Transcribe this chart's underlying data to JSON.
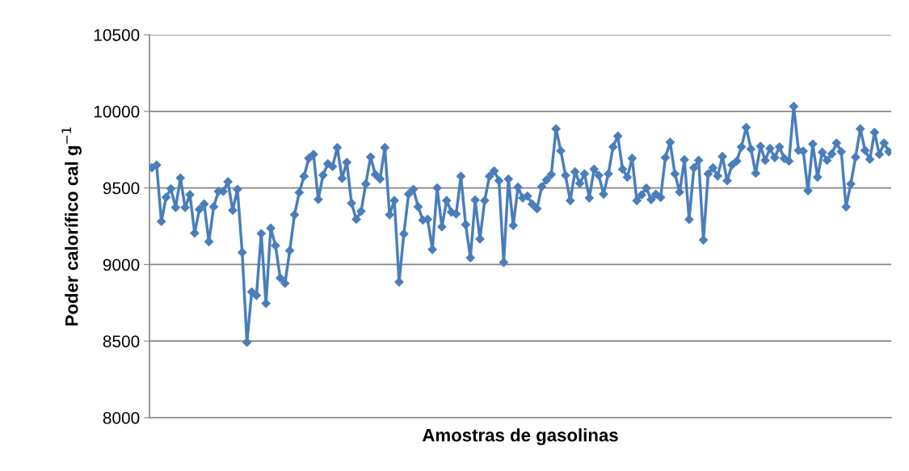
{
  "chart_data": {
    "type": "line",
    "xlabel": "Amostras de gasolinas",
    "ylabel": "Poder calorífico cal g$^{−1}$",
    "categories": [
      null,
      null,
      null,
      null,
      null,
      null,
      null,
      null,
      null,
      null,
      null,
      null,
      null,
      null,
      null,
      null,
      null,
      null,
      null,
      null,
      null,
      null,
      null,
      null,
      null,
      null,
      null,
      null,
      null,
      null,
      null,
      null,
      null,
      null,
      null,
      null,
      null,
      null,
      null,
      null,
      null,
      null,
      null,
      null,
      null,
      null,
      null,
      null,
      null,
      null,
      null,
      null,
      null,
      null,
      null,
      null,
      null,
      null,
      null,
      null,
      null,
      null,
      null,
      null,
      null,
      null,
      null,
      null,
      null,
      null,
      null,
      null,
      null,
      null,
      null,
      null,
      null,
      null,
      null,
      null,
      null,
      null,
      null,
      null,
      null,
      null,
      null,
      null,
      null,
      null,
      null,
      null,
      null,
      null,
      null,
      null,
      null,
      null,
      null,
      null,
      null,
      null,
      null,
      null,
      null,
      null,
      null,
      null,
      null,
      null,
      null,
      null,
      null,
      null,
      null,
      null,
      null,
      null,
      null,
      null,
      null,
      null,
      null,
      null,
      null,
      null,
      null,
      null,
      null,
      null,
      null,
      null,
      null,
      null,
      null,
      null,
      null,
      null,
      null,
      null,
      null,
      null,
      null,
      null,
      null,
      null,
      null,
      null,
      null,
      null,
      null,
      null,
      null,
      null,
      null,
      null
    ],
    "series": [
      {
        "color": "#4a7ebb",
        "values": [
          9632,
          9649,
          9281,
          9439,
          9495,
          9372,
          9565,
          9372,
          9456,
          9205,
          9360,
          9395,
          9149,
          9377,
          9477,
          9477,
          9540,
          9354,
          9491,
          9079,
          8492,
          8821,
          8798,
          9202,
          8746,
          9237,
          9123,
          8912,
          8877,
          9091,
          9325,
          9470,
          9576,
          9693,
          9719,
          9425,
          9583,
          9658,
          9640,
          9763,
          9562,
          9667,
          9400,
          9295,
          9347,
          9526,
          9702,
          9588,
          9558,
          9763,
          9325,
          9418,
          8886,
          9200,
          9460,
          9491,
          9377,
          9290,
          9295,
          9098,
          9500,
          9246,
          9418,
          9342,
          9330,
          9576,
          9260,
          9044,
          9421,
          9167,
          9418,
          9576,
          9611,
          9547,
          9014,
          9558,
          9255,
          9505,
          9434,
          9447,
          9394,
          9364,
          9508,
          9552,
          9587,
          9886,
          9742,
          9582,
          9417,
          9605,
          9529,
          9592,
          9434,
          9622,
          9582,
          9459,
          9592,
          9768,
          9838,
          9622,
          9570,
          9693,
          9417,
          9455,
          9499,
          9424,
          9459,
          9438,
          9698,
          9798,
          9592,
          9473,
          9684,
          9294,
          9631,
          9680,
          9160,
          9592,
          9631,
          9578,
          9705,
          9547,
          9649,
          9675,
          9768,
          9895,
          9754,
          9596,
          9772,
          9680,
          9758,
          9698,
          9768,
          9693,
          9675,
          10032,
          9745,
          9740,
          9482,
          9786,
          9570,
          9733,
          9680,
          9722,
          9793,
          9736,
          9376,
          9526,
          9701,
          9886,
          9745,
          9687,
          9863,
          9719,
          9793,
          9736
        ]
      }
    ],
    "ylim": [
      8000,
      10500
    ],
    "yticks": [
      8000,
      8500,
      9000,
      9500,
      10000,
      10500
    ],
    "grid": "y",
    "marker": "diamond",
    "line_style": "solid",
    "legend": false
  }
}
